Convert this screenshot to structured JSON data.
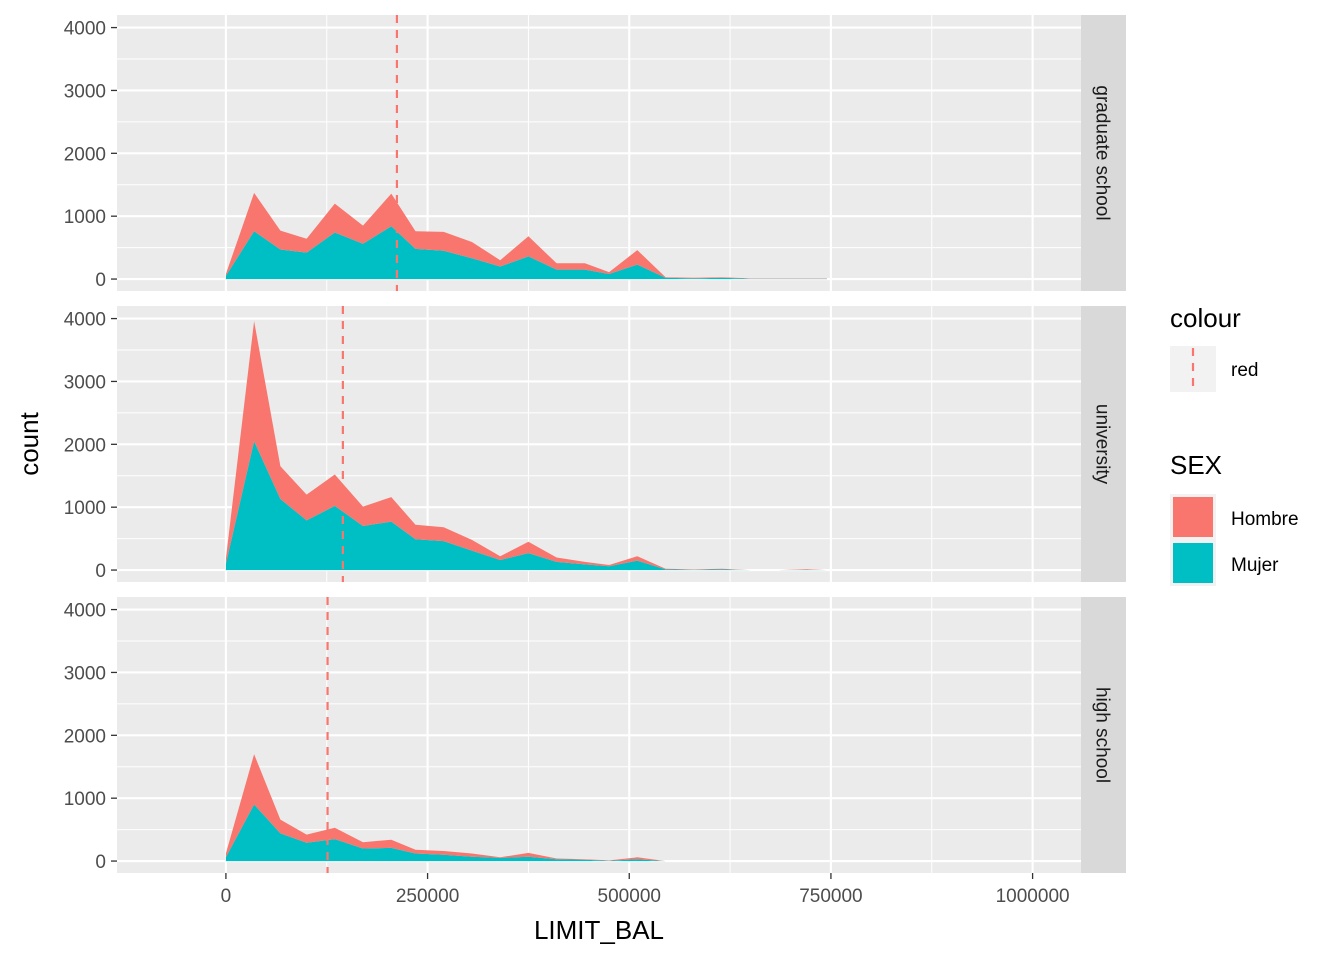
{
  "chart_data": {
    "type": "area",
    "chart_kind": "faceted stacked frequency polygon",
    "xlabel": "LIMIT_BAL",
    "ylabel": "count",
    "xlim": [
      -135000,
      1060000
    ],
    "ylim": [
      -190,
      4200
    ],
    "x_ticks": [
      0,
      250000,
      500000,
      750000,
      1000000
    ],
    "x_tick_labels": [
      "0",
      "250000",
      "500000",
      "750000",
      "1000000"
    ],
    "y_ticks": [
      0,
      1000,
      2000,
      3000,
      4000
    ],
    "y_tick_labels": [
      "0",
      "1000",
      "2000",
      "3000",
      "4000"
    ],
    "grid": true,
    "legend_position": "right",
    "x": [
      0,
      35000,
      67500,
      100000,
      135000,
      170000,
      205000,
      235000,
      270000,
      305000,
      340000,
      375000,
      410000,
      445000,
      475000,
      510000,
      545000,
      580000,
      615000,
      650000,
      685000,
      720000,
      745000
    ],
    "colors": {
      "Hombre": "#F8766D",
      "Mujer": "#00BFC4",
      "red_line": "#F8766D"
    },
    "panels": [
      {
        "strip": "graduate school",
        "vline_x": 212000,
        "series": [
          {
            "name": "Mujer",
            "values": [
              50,
              760,
              470,
              420,
              740,
              560,
              840,
              480,
              450,
              330,
              200,
              360,
              150,
              150,
              80,
              230,
              20,
              10,
              20,
              5,
              5,
              5,
              5
            ]
          },
          {
            "name": "Hombre",
            "values": [
              30,
              610,
              300,
              220,
              460,
              290,
              520,
              280,
              300,
              260,
              100,
              320,
              100,
              100,
              30,
              230,
              10,
              10,
              10,
              5,
              5,
              5,
              5
            ]
          }
        ]
      },
      {
        "strip": "university",
        "vline_x": 145000,
        "series": [
          {
            "name": "Mujer",
            "values": [
              100,
              2050,
              1130,
              790,
              1020,
              700,
              770,
              490,
              460,
              310,
              160,
              270,
              130,
              90,
              60,
              150,
              10,
              5,
              10,
              0,
              0,
              5,
              0
            ]
          },
          {
            "name": "Hombre",
            "values": [
              80,
              1910,
              520,
              410,
              500,
              310,
              390,
              230,
              220,
              170,
              60,
              180,
              70,
              40,
              20,
              70,
              10,
              5,
              10,
              0,
              0,
              10,
              0
            ]
          }
        ]
      },
      {
        "strip": "high school",
        "vline_x": 126000,
        "series": [
          {
            "name": "Mujer",
            "values": [
              60,
              900,
              440,
              290,
              350,
              200,
              210,
              120,
              100,
              70,
              50,
              70,
              30,
              20,
              5,
              30,
              0,
              0,
              0,
              0,
              0,
              0,
              0
            ]
          },
          {
            "name": "Hombre",
            "values": [
              60,
              800,
              220,
              130,
              180,
              100,
              130,
              60,
              60,
              50,
              10,
              60,
              10,
              10,
              5,
              30,
              0,
              0,
              0,
              0,
              0,
              0,
              0
            ]
          }
        ]
      }
    ]
  },
  "legend": {
    "colour_title": "colour",
    "colour_label": "red",
    "sex_title": "SEX",
    "sex_labels": [
      "Hombre",
      "Mujer"
    ]
  }
}
